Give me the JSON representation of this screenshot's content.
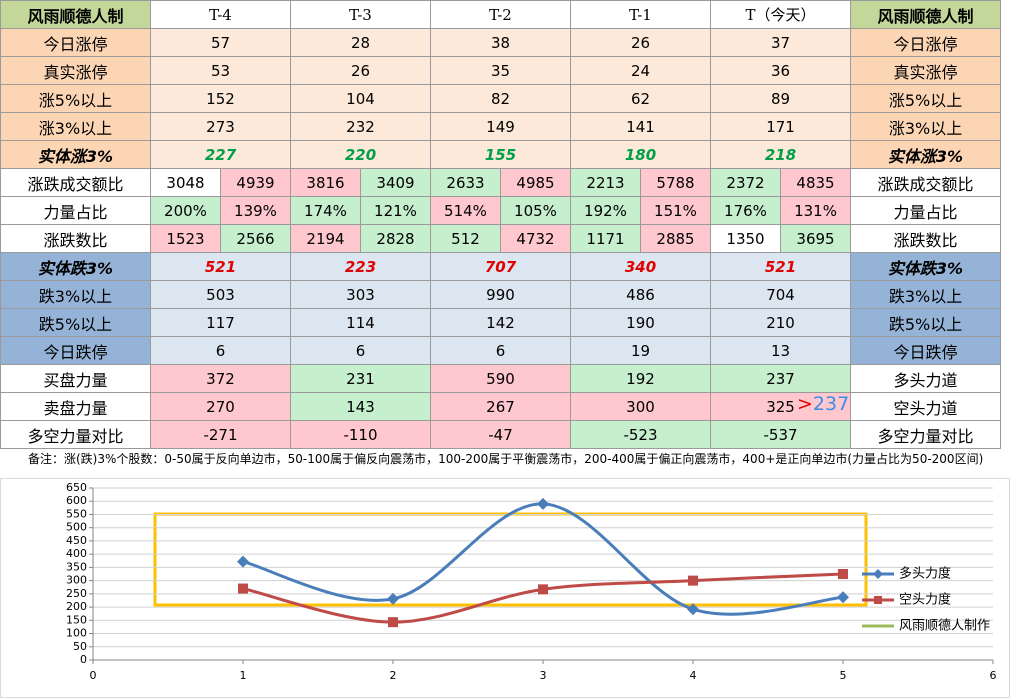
{
  "table": {
    "header": [
      "风雨顺德人制",
      "T-4",
      "T-3",
      "T-2",
      "T-1",
      "T（今天）",
      "风雨顺德人制"
    ],
    "header_colors": [
      "#c4d79b",
      "#ffffff",
      "#c4d79b"
    ],
    "rows": [
      {
        "label": "今日涨停",
        "label_color": "#fcd5b4",
        "cell_color": "#fde9d9",
        "values": [
          "57",
          "28",
          "38",
          "26",
          "37"
        ]
      },
      {
        "label": "真实涨停",
        "label_color": "#fcd5b4",
        "cell_color": "#fde9d9",
        "values": [
          "53",
          "26",
          "35",
          "24",
          "36"
        ]
      },
      {
        "label": "涨5%以上",
        "label_color": "#fcd5b4",
        "cell_color": "#fde9d9",
        "values": [
          "152",
          "104",
          "82",
          "62",
          "89"
        ]
      },
      {
        "label": "涨3%以上",
        "label_color": "#fcd5b4",
        "cell_color": "#fde9d9",
        "values": [
          "273",
          "232",
          "149",
          "141",
          "171"
        ]
      },
      {
        "label": "实体涨3%",
        "label_color": "#fcd5b4",
        "cell_color": "#fde9d9",
        "bold_italic": true,
        "text_color": "#00a04a",
        "values": [
          "227",
          "220",
          "155",
          "180",
          "218"
        ]
      },
      {
        "label": "涨跌成交额比",
        "label_color": "#ffffff",
        "values": [
          "3048",
          "4939",
          "3816",
          "3409",
          "2633",
          "4985",
          "2213",
          "5788",
          "2372",
          "4835"
        ],
        "cell_colors": [
          "#ffffff",
          "#ffc7ce",
          "#ffc7ce",
          "#c6efce",
          "#c6efce",
          "#ffc7ce",
          "#c6efce",
          "#ffc7ce",
          "#c6efce",
          "#ffc7ce"
        ]
      },
      {
        "label": "力量占比",
        "label_color": "#ffffff",
        "values": [
          "200%",
          "139%",
          "174%",
          "121%",
          "514%",
          "105%",
          "192%",
          "151%",
          "176%",
          "131%"
        ],
        "cell_colors": [
          "#c6efce",
          "#ffc7ce",
          "#c6efce",
          "#c6efce",
          "#ffc7ce",
          "#c6efce",
          "#c6efce",
          "#ffc7ce",
          "#c6efce",
          "#ffc7ce"
        ]
      },
      {
        "label": "涨跌数比",
        "label_color": "#ffffff",
        "values": [
          "1523",
          "2566",
          "2194",
          "2828",
          "512",
          "4732",
          "1171",
          "2885",
          "1350",
          "3695"
        ],
        "cell_colors": [
          "#ffc7ce",
          "#c6efce",
          "#ffc7ce",
          "#c6efce",
          "#c6efce",
          "#ffc7ce",
          "#c6efce",
          "#ffc7ce",
          "#ffffff",
          "#c6efce"
        ]
      },
      {
        "label": "实体跌3%",
        "label_color": "#95b3d7",
        "cell_color": "#dce6f1",
        "bold_italic": true,
        "text_color": "#e00000",
        "values": [
          "521",
          "223",
          "707",
          "340",
          "521"
        ]
      },
      {
        "label": "跌3%以上",
        "label_color": "#95b3d7",
        "cell_color": "#dce6f1",
        "values": [
          "503",
          "303",
          "990",
          "486",
          "704"
        ]
      },
      {
        "label": "跌5%以上",
        "label_color": "#95b3d7",
        "cell_color": "#dce6f1",
        "values": [
          "117",
          "114",
          "142",
          "190",
          "210"
        ]
      },
      {
        "label": "今日跌停",
        "label_color": "#95b3d7",
        "cell_color": "#dce6f1",
        "values": [
          "6",
          "6",
          "6",
          "19",
          "13"
        ]
      },
      {
        "label": "买盘力量",
        "label_color": "#ffffff",
        "values": [
          "372",
          "231",
          "590",
          "192",
          "237"
        ],
        "cell_colors": [
          "#ffc7ce",
          "#c6efce",
          "#ffc7ce",
          "#c6efce",
          "#c6efce"
        ]
      },
      {
        "label": "卖盘力量",
        "label_color": "#ffffff",
        "values": [
          "270",
          "143",
          "267",
          "300",
          "325"
        ],
        "cell_colors": [
          "#ffc7ce",
          "#c6efce",
          "#ffc7ce",
          "#ffc7ce",
          "#ffc7ce"
        ]
      },
      {
        "label": "多空力量对比",
        "label_color": "#ffffff",
        "values": [
          "-271",
          "-110",
          "-47",
          "-523",
          "-537"
        ],
        "cell_colors": [
          "#ffc7ce",
          "#ffc7ce",
          "#ffc7ce",
          "#c6efce",
          "#c6efce"
        ]
      }
    ],
    "right_labels": [
      "今日涨停",
      "真实涨停",
      "涨5%以上",
      "涨3%以上",
      "实体涨3%",
      "涨跌成交额比",
      "力量占比",
      "涨跌数比",
      "实体跌3%",
      "跌3%以上",
      "跌5%以上",
      "今日跌停",
      "多头力道",
      "空头力道",
      "多空力量对比"
    ],
    "annotation_mark": ">",
    "annotation_value": "237",
    "note": "备注：涨(跌)3%个股数：0-50属于反向单边市，50-100属于偏反向震荡市，100-200属于平衡震荡市，200-400属于偏正向震荡市，400+是正向单边市(力量占比为50-200区间)"
  },
  "chart_data": {
    "type": "line",
    "smooth": true,
    "x": [
      1,
      2,
      3,
      4,
      5
    ],
    "series": [
      {
        "name": "多头力度",
        "color": "#4a7ebb",
        "marker": "diamond",
        "values": [
          372,
          231,
          590,
          192,
          237
        ]
      },
      {
        "name": "空头力度",
        "color": "#be4b48",
        "marker": "square",
        "values": [
          270,
          143,
          267,
          300,
          325
        ]
      }
    ],
    "legend_extra": {
      "name": "风雨顺德人制作",
      "color": "#9bbb59"
    },
    "xlim": [
      0,
      6
    ],
    "xticks": [
      0,
      1,
      2,
      3,
      4,
      5,
      6
    ],
    "ylim": [
      0,
      650
    ],
    "yticks": [
      0,
      50,
      100,
      150,
      200,
      250,
      300,
      350,
      400,
      450,
      500,
      550,
      600,
      650
    ],
    "grid": true,
    "legend": "right"
  }
}
